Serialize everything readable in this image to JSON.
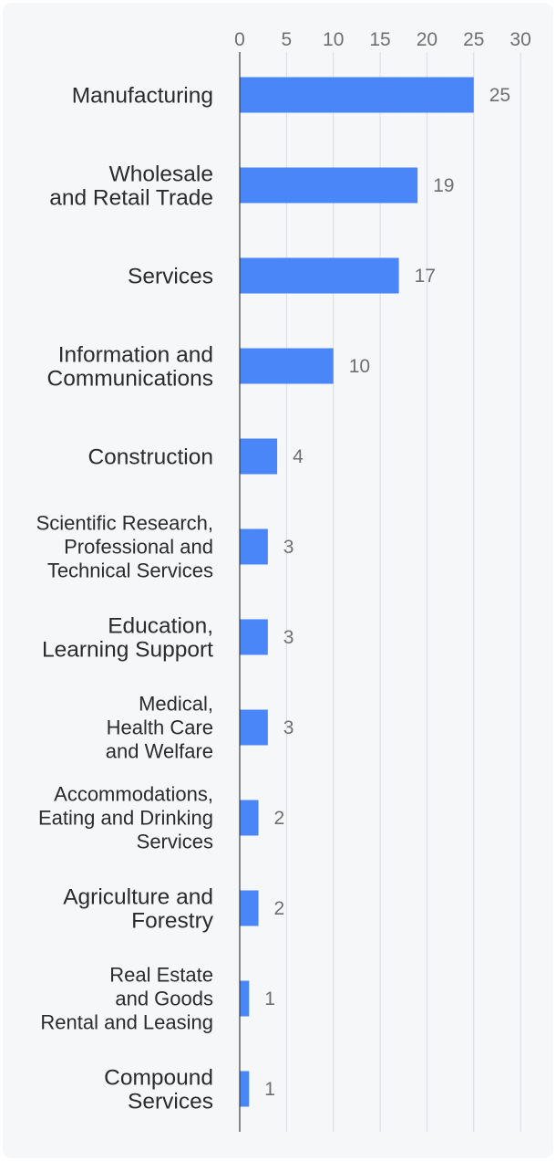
{
  "chart_data": {
    "type": "bar",
    "orientation": "horizontal",
    "categories": [
      "Manufacturing",
      "Wholesale\nand Retail Trade",
      "Services",
      "Information and\nCommunications",
      "Construction",
      "Scientific Research,\nProfessional and\nTechnical Services",
      "Education,\nLearning Support",
      "Medical,\nHealth Care\nand Welfare",
      "Accommodations,\nEating and Drinking\nServices",
      "Agriculture and\nForestry",
      "Real Estate\nand Goods\nRental and Leasing",
      "Compound\nServices"
    ],
    "values": [
      25,
      19,
      17,
      10,
      4,
      3,
      3,
      3,
      2,
      2,
      1,
      1
    ],
    "xlim": [
      0,
      30
    ],
    "xticks": [
      0,
      5,
      10,
      15,
      20,
      25,
      30
    ],
    "axis_position": "top",
    "grid": true,
    "data_labels": true,
    "title": "",
    "xlabel": "",
    "ylabel": ""
  },
  "colors": {
    "background": "#f5f7f9",
    "bar": "#4a86f7",
    "grid": "#d9dde2",
    "axis": "#3a3a3a",
    "category_text": "#2b2b2b",
    "tick_text": "#6f6f6f",
    "value_text": "#6f6f6f"
  }
}
